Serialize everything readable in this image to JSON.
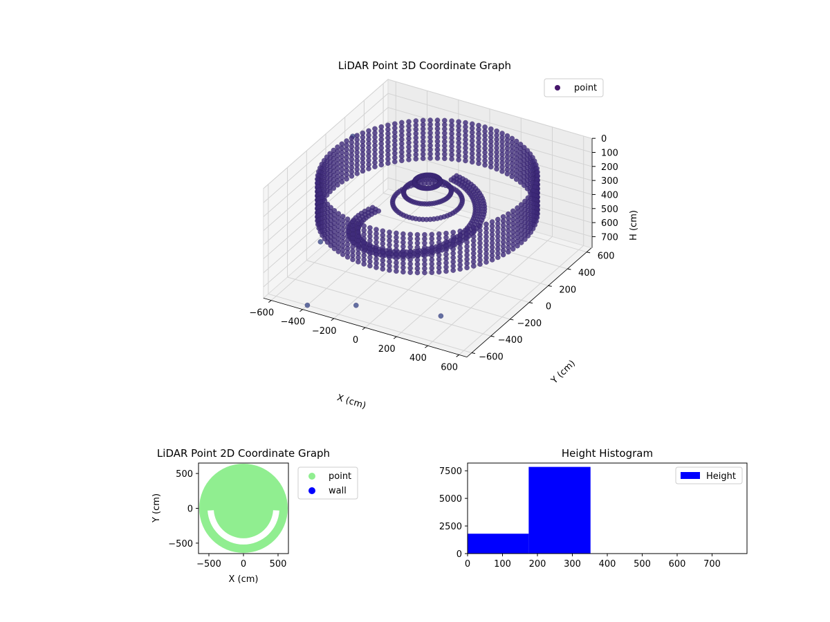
{
  "chart_data": [
    {
      "type": "scatter3d",
      "title": "LiDAR Point 3D Coordinate Graph",
      "xlabel": "X (cm)",
      "ylabel": "Y (cm)",
      "zlabel": "H (cm)",
      "xlim": [
        -650,
        650
      ],
      "ylim": [
        -650,
        650
      ],
      "zlim": [
        0,
        780
      ],
      "z_inverted": true,
      "xticks": [
        -600,
        -400,
        -200,
        0,
        200,
        400,
        600
      ],
      "yticks": [
        -600,
        -400,
        -200,
        0,
        200,
        400,
        600
      ],
      "zticks": [
        0,
        100,
        200,
        300,
        400,
        500,
        600,
        700
      ],
      "legend": {
        "label": "point",
        "position": "top-right"
      },
      "series": [
        {
          "name": "point",
          "description": "outer cylindrical wall ring",
          "radius": 600,
          "h_range": [
            100,
            370
          ]
        },
        {
          "name": "point",
          "description": "inner spiral ramp",
          "radius_range": [
            250,
            480
          ],
          "h_range": [
            200,
            540
          ]
        },
        {
          "name": "point",
          "description": "central cluster",
          "radius": 200,
          "h_range": [
            100,
            350
          ]
        }
      ],
      "outliers": [
        {
          "x": -600,
          "y": 200,
          "h": 120
        },
        {
          "x": -500,
          "y": -300,
          "h": 540
        },
        {
          "x": -150,
          "y": -500,
          "h": 760
        },
        {
          "x": 300,
          "y": -350,
          "h": 780
        },
        {
          "x": -400,
          "y": -600,
          "h": 780
        }
      ],
      "colors": {
        "marker": "#3f2a7a",
        "legend_marker": "#46166b"
      }
    },
    {
      "type": "scatter",
      "title": "LiDAR Point 2D Coordinate Graph",
      "xlabel": "X (cm)",
      "ylabel": "Y (cm)",
      "xlim": [
        -650,
        650
      ],
      "ylim": [
        -650,
        650
      ],
      "xticks": [
        -500,
        0,
        500
      ],
      "yticks": [
        -500,
        0,
        500
      ],
      "legend": {
        "position": "outside-right"
      },
      "series": [
        {
          "name": "point",
          "color": "#90ee90",
          "description": "filled disc radius ~600"
        },
        {
          "name": "wall",
          "color": "#0000ff"
        }
      ]
    },
    {
      "type": "bar",
      "title": "Height Histogram",
      "xlim": [
        0,
        800
      ],
      "ylim": [
        0,
        8200
      ],
      "xticks": [
        0,
        100,
        200,
        300,
        400,
        500,
        600,
        700
      ],
      "yticks": [
        0,
        2500,
        5000,
        7500
      ],
      "legend": {
        "label": "Height",
        "position": "top-right"
      },
      "bins": [
        {
          "start": 0,
          "end": 175,
          "count": 1800
        },
        {
          "start": 175,
          "end": 352,
          "count": 7850
        },
        {
          "start": 352,
          "end": 528,
          "count": 0
        },
        {
          "start": 528,
          "end": 704,
          "count": 0
        },
        {
          "start": 704,
          "end": 790,
          "count": 0
        }
      ],
      "series": [
        {
          "name": "Height",
          "color": "#0000ff"
        }
      ]
    }
  ]
}
